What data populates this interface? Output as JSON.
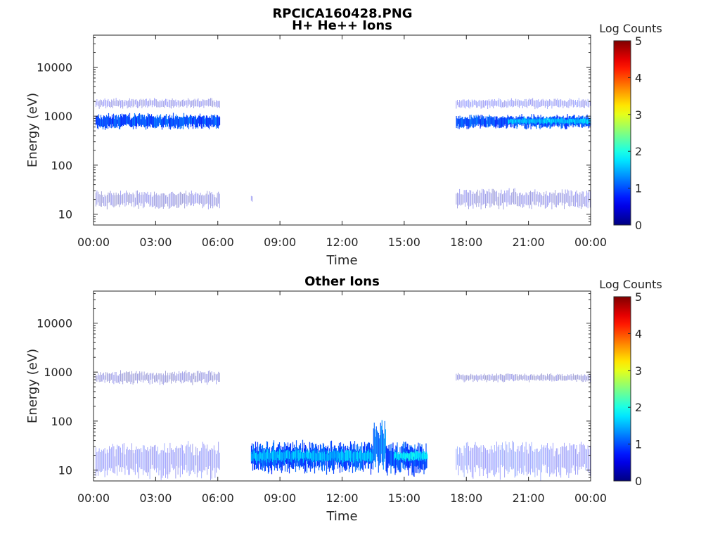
{
  "figure": {
    "title": "RPCICA160428.PNG",
    "time_label": "Time",
    "energy_label": "Energy (eV)"
  },
  "chart_data": [
    {
      "type": "heatmap",
      "title": "H+ He++ Ions",
      "xlabel": "Time",
      "ylabel": "Energy (eV)",
      "x_ticks": [
        "00:00",
        "03:00",
        "06:00",
        "09:00",
        "12:00",
        "15:00",
        "18:00",
        "21:00",
        "00:00"
      ],
      "xlim_hours": [
        0,
        24
      ],
      "y_scale": "log",
      "y_ticks": [
        10,
        100,
        1000,
        10000
      ],
      "y_tick_labels": [
        "10",
        "100",
        "1000",
        "10000"
      ],
      "ylim": [
        6,
        45000
      ],
      "colorbar": {
        "label": "Log Counts",
        "ticks": [
          0,
          1,
          2,
          3,
          4,
          5
        ],
        "range": [
          0,
          5
        ],
        "colormap": "jet"
      },
      "bands": [
        {
          "t_start": 0.1,
          "t_end": 6.1,
          "e_low": 1500,
          "e_high": 2200,
          "log_counts": 0.4
        },
        {
          "t_start": 0.1,
          "t_end": 6.1,
          "e_low": 580,
          "e_high": 1050,
          "log_counts": 1.0
        },
        {
          "t_start": 0.1,
          "t_end": 6.1,
          "e_low": 14,
          "e_high": 28,
          "log_counts": 0.3
        },
        {
          "t_start": 7.6,
          "t_end": 7.7,
          "e_low": 16,
          "e_high": 24,
          "log_counts": 0.3
        },
        {
          "t_start": 17.5,
          "t_end": 24.0,
          "e_low": 1500,
          "e_high": 2200,
          "log_counts": 0.6
        },
        {
          "t_start": 17.5,
          "t_end": 24.0,
          "e_low": 580,
          "e_high": 1000,
          "log_counts": 1.0
        },
        {
          "t_start": 20.0,
          "t_end": 24.0,
          "e_low": 700,
          "e_high": 900,
          "log_counts": 1.6
        },
        {
          "t_start": 17.5,
          "t_end": 24.0,
          "e_low": 14,
          "e_high": 30,
          "log_counts": 0.3
        }
      ]
    },
    {
      "type": "heatmap",
      "title": "Other Ions",
      "xlabel": "Time",
      "ylabel": "Energy (eV)",
      "x_ticks": [
        "00:00",
        "03:00",
        "06:00",
        "09:00",
        "12:00",
        "15:00",
        "18:00",
        "21:00",
        "00:00"
      ],
      "xlim_hours": [
        0,
        24
      ],
      "y_scale": "log",
      "y_ticks": [
        10,
        100,
        1000,
        10000
      ],
      "y_tick_labels": [
        "10",
        "100",
        "1000",
        "10000"
      ],
      "ylim": [
        6,
        45000
      ],
      "colorbar": {
        "label": "Log Counts",
        "ticks": [
          0,
          1,
          2,
          3,
          4,
          5
        ],
        "range": [
          0,
          5
        ],
        "colormap": "jet"
      },
      "bands": [
        {
          "t_start": 0.1,
          "t_end": 6.1,
          "e_low": 8,
          "e_high": 32,
          "log_counts": 0.6
        },
        {
          "t_start": 0.1,
          "t_end": 6.1,
          "e_low": 600,
          "e_high": 1000,
          "log_counts": 0.2
        },
        {
          "t_start": 7.6,
          "t_end": 13.5,
          "e_low": 10,
          "e_high": 33,
          "log_counts": 1.0
        },
        {
          "t_start": 7.6,
          "t_end": 13.5,
          "e_low": 15,
          "e_high": 25,
          "log_counts": 1.5
        },
        {
          "t_start": 13.5,
          "t_end": 14.1,
          "e_low": 12,
          "e_high": 80,
          "log_counts": 1.2
        },
        {
          "t_start": 14.1,
          "t_end": 16.1,
          "e_low": 9,
          "e_high": 32,
          "log_counts": 1.0
        },
        {
          "t_start": 14.5,
          "t_end": 16.1,
          "e_low": 16,
          "e_high": 24,
          "log_counts": 1.8
        },
        {
          "t_start": 17.5,
          "t_end": 24.0,
          "e_low": 8,
          "e_high": 33,
          "log_counts": 0.7
        },
        {
          "t_start": 17.5,
          "t_end": 24.0,
          "e_low": 650,
          "e_high": 900,
          "log_counts": 0.2
        }
      ]
    }
  ]
}
